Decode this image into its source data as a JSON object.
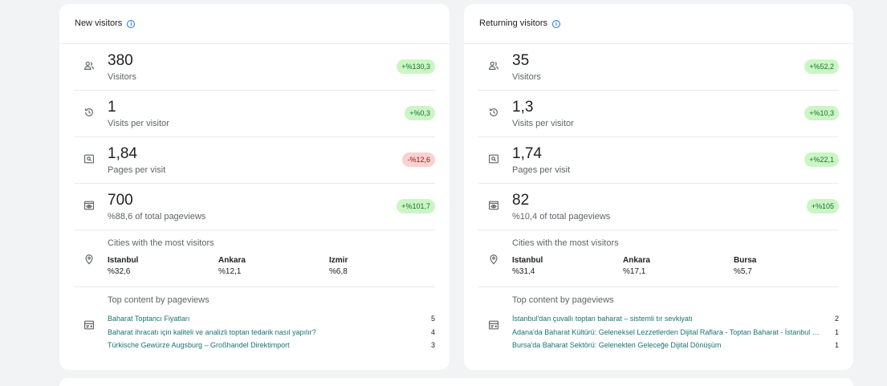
{
  "left": {
    "title": "New visitors",
    "metrics": [
      {
        "value": "380",
        "label": "Visitors",
        "change": "+%130,3",
        "trend": "up"
      },
      {
        "value": "1",
        "label": "Visits per visitor",
        "change": "+%0,3",
        "trend": "up"
      },
      {
        "value": "1,84",
        "label": "Pages per visit",
        "change": "-%12,6",
        "trend": "down"
      },
      {
        "value": "700",
        "label": "%88,6 of total pageviews",
        "change": "+%101,7",
        "trend": "up"
      }
    ],
    "cities_title": "Cities with the most visitors",
    "cities": [
      {
        "name": "Istanbul",
        "pct": "%32,6"
      },
      {
        "name": "Ankara",
        "pct": "%12,1"
      },
      {
        "name": "Izmir",
        "pct": "%6,8"
      }
    ],
    "content_title": "Top content by pageviews",
    "content": [
      {
        "title": "Baharat Toptancı Fiyatları",
        "count": "5"
      },
      {
        "title": "Baharat ihracatı için kaliteli ve analizli toptan tedarik nasıl yapılır?",
        "count": "4"
      },
      {
        "title": "Türkische Gewürze Augsburg – Großhandel Direktimport",
        "count": "3"
      }
    ]
  },
  "right": {
    "title": "Returning visitors",
    "metrics": [
      {
        "value": "35",
        "label": "Visitors",
        "change": "+%52,2",
        "trend": "up"
      },
      {
        "value": "1,3",
        "label": "Visits per visitor",
        "change": "+%10,3",
        "trend": "up"
      },
      {
        "value": "1,74",
        "label": "Pages per visit",
        "change": "+%22,1",
        "trend": "up"
      },
      {
        "value": "82",
        "label": "%10,4 of total pageviews",
        "change": "+%105",
        "trend": "up"
      }
    ],
    "cities_title": "Cities with the most visitors",
    "cities": [
      {
        "name": "Istanbul",
        "pct": "%31,4"
      },
      {
        "name": "Ankara",
        "pct": "%17,1"
      },
      {
        "name": "Bursa",
        "pct": "%5,7"
      }
    ],
    "content_title": "Top content by pageviews",
    "content": [
      {
        "title": "İstanbul'dan çuvallı toptan baharat – sistemli tır sevkiyatı",
        "count": "2"
      },
      {
        "title": "Adana'da Baharat Kültürü: Geleneksel Lezzetlerden Dijital Raflara - Toptan Baharat - İstanbul - Dünya Baharat",
        "count": "1"
      },
      {
        "title": "Bursa'da Baharat Sektörü: Gelenekten Geleceğe Dijital Dönüşüm",
        "count": "1"
      }
    ]
  },
  "icons": {
    "visitors": "people-icon",
    "visits": "history-icon",
    "pages": "page-search-icon",
    "pageviews": "eye-window-icon",
    "cities": "location-pin-icon",
    "content": "content-card-icon",
    "info": "info-icon"
  },
  "colors": {
    "badge_up_bg": "#ccf5c4",
    "badge_down_bg": "#fad2cf",
    "link": "#1a7372",
    "info": "#1a73e8"
  }
}
